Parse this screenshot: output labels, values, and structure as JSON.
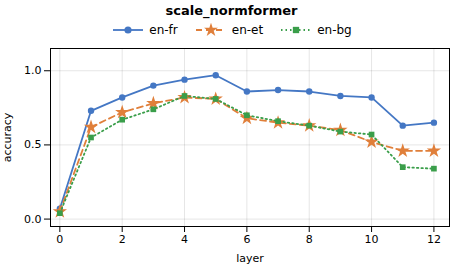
{
  "chart_data": {
    "type": "line",
    "title": "scale_normformer",
    "x_label": "layer",
    "y_label": "accuracy",
    "x": [
      0,
      1,
      2,
      3,
      4,
      5,
      6,
      7,
      8,
      9,
      10,
      11,
      12
    ],
    "series": [
      {
        "name": "en-fr",
        "color": "#4477c4",
        "marker": "circle",
        "line_style": "solid",
        "values": [
          0.07,
          0.73,
          0.82,
          0.9,
          0.94,
          0.97,
          0.86,
          0.87,
          0.86,
          0.83,
          0.82,
          0.63,
          0.65
        ]
      },
      {
        "name": "en-et",
        "color": "#e07f3a",
        "marker": "star",
        "line_style": "dashed",
        "values": [
          0.05,
          0.62,
          0.72,
          0.78,
          0.82,
          0.81,
          0.68,
          0.65,
          0.63,
          0.6,
          0.52,
          0.46,
          0.46
        ]
      },
      {
        "name": "en-bg",
        "color": "#3a9e4a",
        "marker": "square",
        "line_style": "dotted",
        "values": [
          0.04,
          0.55,
          0.67,
          0.74,
          0.83,
          0.81,
          0.7,
          0.66,
          0.63,
          0.59,
          0.57,
          0.35,
          0.34
        ]
      }
    ],
    "xlim": [
      -0.3,
      12.5
    ],
    "ylim": [
      -0.05,
      1.15
    ],
    "xticks": [
      0,
      2,
      4,
      6,
      8,
      10,
      12
    ],
    "yticks": [
      {
        "value": 0.0,
        "label": "0.0"
      },
      0.5,
      {
        "value": 1.0,
        "label": "1.0"
      }
    ],
    "grid": true,
    "legend": "top"
  }
}
